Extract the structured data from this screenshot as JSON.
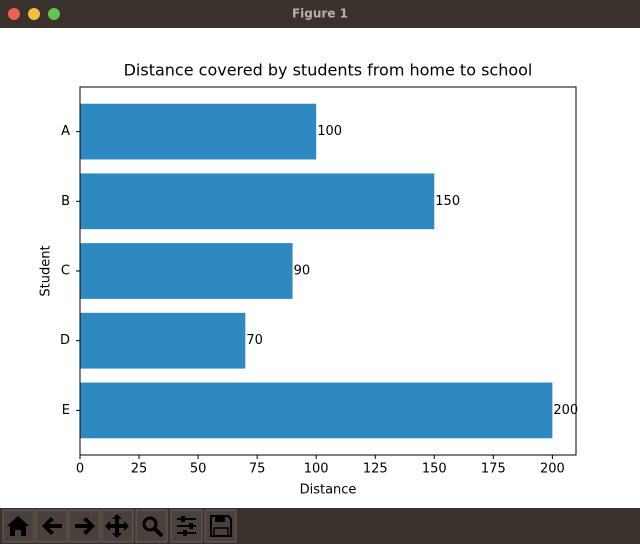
{
  "window": {
    "title": "Figure 1"
  },
  "chart_data": {
    "type": "barh",
    "title": "Distance covered by students from home to school",
    "categories": [
      "A",
      "B",
      "C",
      "D",
      "E"
    ],
    "values": [
      100,
      150,
      90,
      70,
      200
    ],
    "color": "#2e89c1",
    "x_label": "Distance",
    "y_label": "Student",
    "xlim": [
      0,
      210
    ],
    "xticks": [
      0,
      25,
      50,
      75,
      100,
      125,
      150,
      175,
      200
    ]
  }
}
